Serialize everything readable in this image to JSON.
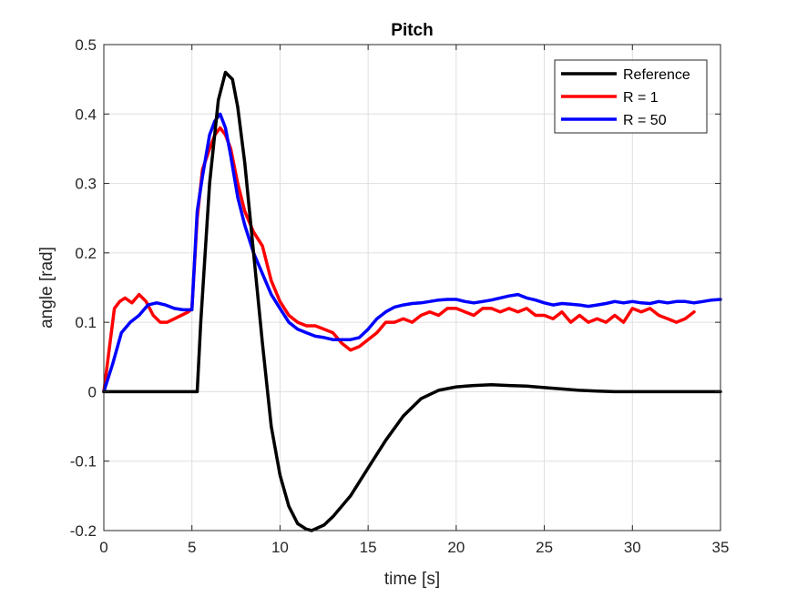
{
  "chart_data": {
    "type": "line",
    "title": "Pitch",
    "xlabel": "time [s]",
    "ylabel": "angle [rad]",
    "xlim": [
      0,
      35
    ],
    "ylim": [
      -0.2,
      0.5
    ],
    "xticks": [
      0,
      5,
      10,
      15,
      20,
      25,
      30,
      35
    ],
    "yticks": [
      -0.2,
      -0.1,
      0,
      0.1,
      0.2,
      0.3,
      0.4,
      0.5
    ],
    "xtick_labels": [
      "0",
      "5",
      "10",
      "15",
      "20",
      "25",
      "30",
      "35"
    ],
    "ytick_labels": [
      "-0.2",
      "-0.1",
      "0",
      "0.1",
      "0.2",
      "0.3",
      "0.4",
      "0.5"
    ],
    "grid": true,
    "legend_position": "top-right",
    "series": [
      {
        "name": "Reference",
        "color": "#000000",
        "x": [
          0,
          5.2,
          5.3,
          5.5,
          6.0,
          6.5,
          6.9,
          7.3,
          7.6,
          8.0,
          8.5,
          9.0,
          9.5,
          10.0,
          10.5,
          11.0,
          11.5,
          11.8,
          12.5,
          13.0,
          14.0,
          15.0,
          16.0,
          17.0,
          18.0,
          19.0,
          20.0,
          21.0,
          22.0,
          23.0,
          24.0,
          25.0,
          26.0,
          27.0,
          28.0,
          29.0,
          35.0
        ],
        "values": [
          0,
          0,
          0,
          0.1,
          0.3,
          0.42,
          0.46,
          0.45,
          0.41,
          0.33,
          0.2,
          0.07,
          -0.05,
          -0.12,
          -0.165,
          -0.19,
          -0.198,
          -0.2,
          -0.192,
          -0.18,
          -0.15,
          -0.11,
          -0.07,
          -0.035,
          -0.01,
          0.002,
          0.007,
          0.009,
          0.01,
          0.009,
          0.008,
          0.006,
          0.004,
          0.002,
          0.001,
          0,
          0
        ]
      },
      {
        "name": "R = 1",
        "color": "#ff0000",
        "x": [
          0,
          0.3,
          0.6,
          0.9,
          1.2,
          1.6,
          2.0,
          2.4,
          2.8,
          3.2,
          3.6,
          4.0,
          4.4,
          4.8,
          5.0,
          5.3,
          5.6,
          6.0,
          6.3,
          6.6,
          6.9,
          7.2,
          7.6,
          8.0,
          8.5,
          9.0,
          9.5,
          10.0,
          10.5,
          11.0,
          11.5,
          12.0,
          12.5,
          13.0,
          13.5,
          14.0,
          14.5,
          15.0,
          15.5,
          16.0,
          16.5,
          17.0,
          17.5,
          18.0,
          18.5,
          19.0,
          19.5,
          20.0,
          20.5,
          21.0,
          21.5,
          22.0,
          22.5,
          23.0,
          23.5,
          24.0,
          24.5,
          25.0,
          25.5,
          26.0,
          26.5,
          27.0,
          27.5,
          28.0,
          28.5,
          29.0,
          29.5,
          30.0,
          30.5,
          31.0,
          31.5,
          32.0,
          32.5,
          33.0,
          33.5
        ],
        "values": [
          0,
          0.06,
          0.12,
          0.13,
          0.135,
          0.128,
          0.14,
          0.13,
          0.11,
          0.1,
          0.1,
          0.105,
          0.11,
          0.115,
          0.12,
          0.25,
          0.32,
          0.35,
          0.37,
          0.38,
          0.37,
          0.35,
          0.3,
          0.26,
          0.23,
          0.21,
          0.16,
          0.13,
          0.11,
          0.1,
          0.095,
          0.095,
          0.09,
          0.085,
          0.07,
          0.06,
          0.065,
          0.075,
          0.085,
          0.1,
          0.1,
          0.105,
          0.1,
          0.11,
          0.115,
          0.11,
          0.12,
          0.12,
          0.115,
          0.11,
          0.12,
          0.12,
          0.115,
          0.12,
          0.115,
          0.12,
          0.11,
          0.11,
          0.105,
          0.115,
          0.1,
          0.11,
          0.1,
          0.105,
          0.1,
          0.11,
          0.1,
          0.12,
          0.115,
          0.12,
          0.11,
          0.105,
          0.1,
          0.105,
          0.115
        ]
      },
      {
        "name": "R = 50",
        "color": "#0000ff",
        "x": [
          0,
          0.5,
          1.0,
          1.5,
          2.0,
          2.5,
          3.0,
          3.5,
          4.0,
          4.5,
          5.0,
          5.3,
          5.6,
          6.0,
          6.3,
          6.6,
          6.9,
          7.2,
          7.6,
          8.0,
          8.5,
          9.0,
          9.5,
          10.0,
          10.5,
          11.0,
          11.5,
          12.0,
          12.5,
          13.0,
          13.5,
          14.0,
          14.5,
          15.0,
          15.5,
          16.0,
          16.5,
          17.0,
          17.5,
          18.0,
          18.5,
          19.0,
          19.5,
          20.0,
          20.5,
          21.0,
          21.5,
          22.0,
          22.5,
          23.0,
          23.5,
          24.0,
          24.5,
          25.0,
          25.5,
          26.0,
          26.5,
          27.0,
          27.5,
          28.0,
          28.5,
          29.0,
          29.5,
          30.0,
          30.5,
          31.0,
          31.5,
          32.0,
          32.5,
          33.0,
          33.5,
          34.0,
          34.5,
          35.0
        ],
        "values": [
          0,
          0.04,
          0.085,
          0.1,
          0.11,
          0.125,
          0.128,
          0.125,
          0.12,
          0.118,
          0.118,
          0.26,
          0.31,
          0.37,
          0.39,
          0.4,
          0.38,
          0.34,
          0.28,
          0.24,
          0.2,
          0.17,
          0.14,
          0.12,
          0.1,
          0.09,
          0.085,
          0.08,
          0.078,
          0.075,
          0.075,
          0.075,
          0.078,
          0.09,
          0.105,
          0.115,
          0.122,
          0.125,
          0.127,
          0.128,
          0.13,
          0.132,
          0.133,
          0.133,
          0.13,
          0.128,
          0.13,
          0.132,
          0.135,
          0.138,
          0.14,
          0.135,
          0.132,
          0.128,
          0.125,
          0.127,
          0.126,
          0.125,
          0.123,
          0.125,
          0.127,
          0.13,
          0.128,
          0.13,
          0.128,
          0.127,
          0.13,
          0.128,
          0.13,
          0.13,
          0.128,
          0.13,
          0.132,
          0.133
        ]
      }
    ]
  }
}
